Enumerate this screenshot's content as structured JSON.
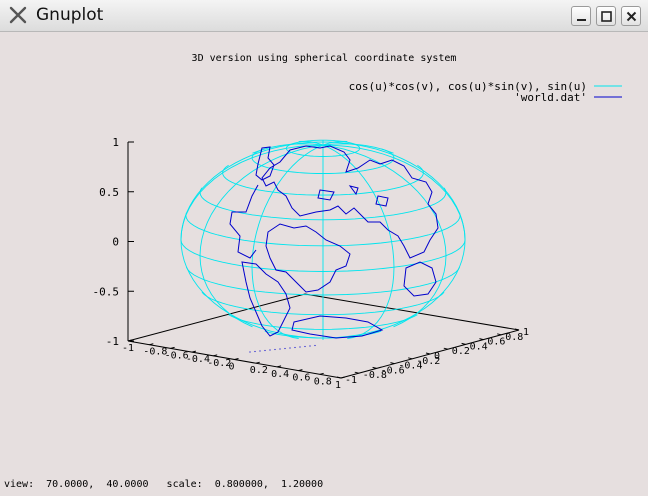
{
  "window": {
    "title": "Gnuplot",
    "minimize_icon": "minimize-icon",
    "maximize_icon": "maximize-icon",
    "close_icon": "close-icon"
  },
  "chart_data": {
    "type": "surface-3d",
    "title": "3D version using spherical coordinate system",
    "legend_placement": "top-right",
    "series": [
      {
        "name": "cos(u)*cos(v), cos(u)*sin(v), sin(u)",
        "color": "#00e5ee",
        "kind": "parametric sphere mesh"
      },
      {
        "name": "'world.dat'",
        "color": "#0000cc",
        "kind": "coastline lines"
      }
    ],
    "axes": {
      "x": {
        "range": [
          -1,
          1
        ],
        "ticks": [
          "-1",
          "-0.8",
          "-0.6",
          "-0.4",
          "-0.2",
          "0",
          "0.2",
          "0.4",
          "0.6",
          "0.8",
          "1"
        ]
      },
      "y": {
        "range": [
          -1,
          1
        ],
        "ticks": [
          "-1",
          "-0.8",
          "-0.6",
          "-0.4",
          "-0.2",
          "0",
          "0.2",
          "0.4",
          "0.6",
          "0.8",
          "1"
        ]
      },
      "z": {
        "range": [
          -1,
          1
        ],
        "ticks": [
          "1",
          "0.5",
          "0",
          "-0.5",
          "-1"
        ]
      }
    },
    "view": {
      "rot_x": 70,
      "rot_z": 40,
      "scale": 0.8,
      "scale_z": 1.2
    }
  },
  "status": {
    "text": "view:  70.0000,  40.0000   scale:  0.800000,  1.20000"
  }
}
